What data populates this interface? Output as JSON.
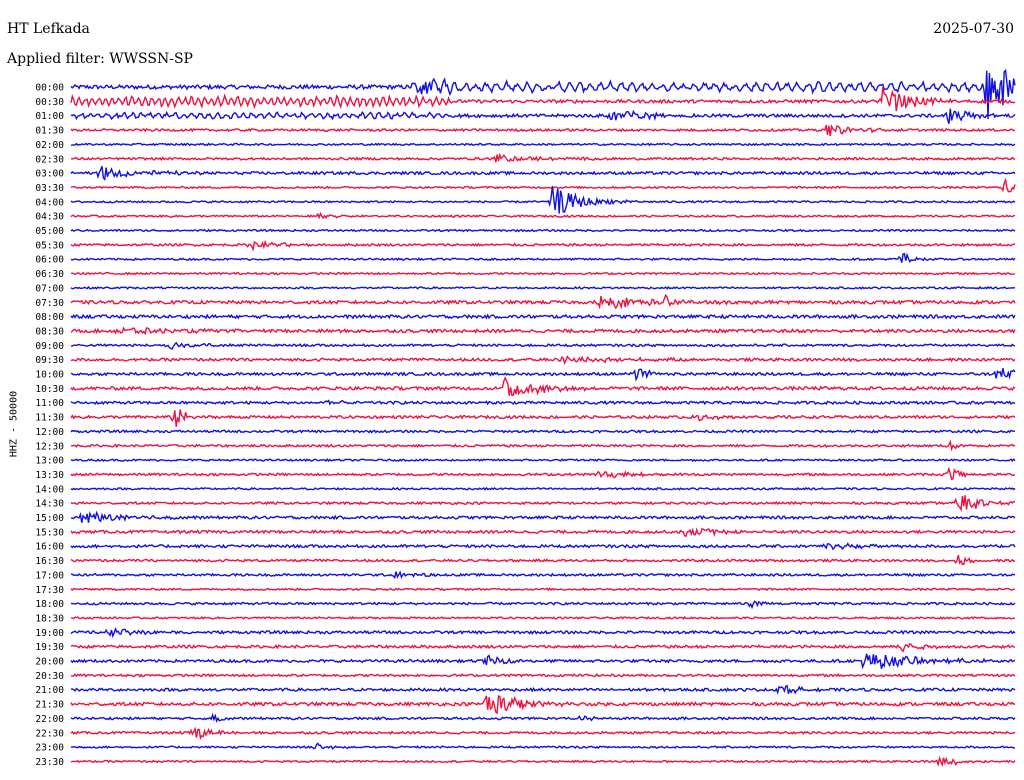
{
  "header": {
    "station": "HT Lefkada",
    "date": "2025-07-30",
    "filter_text": "Applied filter: WWSSN-SP"
  },
  "axis": {
    "ylabel": "HHZ - 50000"
  },
  "colors": {
    "trace_a": "#1010e0",
    "trace_b": "#f01040"
  },
  "chart_data": {
    "type": "line",
    "title": "HT Lefkada",
    "subtitle": "Applied filter: WWSSN-SP",
    "ylabel": "HHZ - 50000",
    "xlabel": "",
    "grid": false,
    "rows": [
      {
        "label": "00:00",
        "color": "blue",
        "base": 0.45,
        "events": [
          {
            "t": 0.37,
            "a": 2.5,
            "d": 0.02
          },
          {
            "t": 0.97,
            "a": 7.0,
            "d": 0.03
          }
        ],
        "swell": [
          {
            "from": 0.36,
            "to": 1.0,
            "a": 0.9,
            "period": 0.011
          }
        ]
      },
      {
        "label": "00:30",
        "color": "red",
        "base": 0.35,
        "events": [
          {
            "t": 0.86,
            "a": 3.0,
            "d": 0.03
          }
        ],
        "swell": [
          {
            "from": 0.0,
            "to": 0.4,
            "a": 1.0,
            "period": 0.007
          }
        ]
      },
      {
        "label": "01:00",
        "color": "blue",
        "base": 0.35,
        "events": [
          {
            "t": 0.57,
            "a": 2.0,
            "d": 0.03
          },
          {
            "t": 0.93,
            "a": 1.8,
            "d": 0.02
          }
        ],
        "swell": [
          {
            "from": 0.0,
            "to": 0.4,
            "a": 0.5,
            "period": 0.009
          }
        ]
      },
      {
        "label": "01:30",
        "color": "red",
        "base": 0.25,
        "events": [
          {
            "t": 0.8,
            "a": 1.3,
            "d": 0.03
          }
        ],
        "swell": []
      },
      {
        "label": "02:00",
        "color": "blue",
        "base": 0.2,
        "events": [],
        "swell": []
      },
      {
        "label": "02:30",
        "color": "red",
        "base": 0.25,
        "events": [
          {
            "t": 0.45,
            "a": 0.9,
            "d": 0.04
          }
        ],
        "swell": []
      },
      {
        "label": "03:00",
        "color": "blue",
        "base": 0.3,
        "events": [
          {
            "t": 0.03,
            "a": 1.6,
            "d": 0.04
          }
        ],
        "swell": []
      },
      {
        "label": "03:30",
        "color": "red",
        "base": 0.2,
        "events": [
          {
            "t": 0.99,
            "a": 2.5,
            "d": 0.01
          }
        ],
        "swell": []
      },
      {
        "label": "04:00",
        "color": "blue",
        "base": 0.2,
        "events": [
          {
            "t": 0.51,
            "a": 3.5,
            "d": 0.03
          }
        ],
        "swell": []
      },
      {
        "label": "04:30",
        "color": "red",
        "base": 0.2,
        "events": [
          {
            "t": 0.26,
            "a": 0.7,
            "d": 0.02
          }
        ],
        "swell": []
      },
      {
        "label": "05:00",
        "color": "blue",
        "base": 0.2,
        "events": [],
        "swell": []
      },
      {
        "label": "05:30",
        "color": "red",
        "base": 0.25,
        "events": [
          {
            "t": 0.19,
            "a": 0.9,
            "d": 0.03
          }
        ],
        "swell": []
      },
      {
        "label": "06:00",
        "color": "blue",
        "base": 0.2,
        "events": [
          {
            "t": 0.88,
            "a": 2.0,
            "d": 0.01
          }
        ],
        "swell": []
      },
      {
        "label": "06:30",
        "color": "red",
        "base": 0.2,
        "events": [],
        "swell": []
      },
      {
        "label": "07:00",
        "color": "blue",
        "base": 0.2,
        "events": [],
        "swell": []
      },
      {
        "label": "07:30",
        "color": "red",
        "base": 0.35,
        "events": [
          {
            "t": 0.56,
            "a": 1.4,
            "d": 0.06
          },
          {
            "t": 0.63,
            "a": 1.6,
            "d": 0.01
          }
        ],
        "swell": []
      },
      {
        "label": "08:00",
        "color": "blue",
        "base": 0.35,
        "events": [],
        "swell": []
      },
      {
        "label": "08:30",
        "color": "red",
        "base": 0.35,
        "events": [
          {
            "t": 0.05,
            "a": 0.8,
            "d": 0.05
          }
        ],
        "swell": []
      },
      {
        "label": "09:00",
        "color": "blue",
        "base": 0.25,
        "events": [
          {
            "t": 0.1,
            "a": 1.0,
            "d": 0.03
          }
        ],
        "swell": []
      },
      {
        "label": "09:30",
        "color": "red",
        "base": 0.3,
        "events": [
          {
            "t": 0.52,
            "a": 0.8,
            "d": 0.06
          }
        ],
        "swell": []
      },
      {
        "label": "10:00",
        "color": "blue",
        "base": 0.3,
        "events": [
          {
            "t": 0.6,
            "a": 1.8,
            "d": 0.01
          },
          {
            "t": 0.98,
            "a": 1.4,
            "d": 0.03
          }
        ],
        "swell": []
      },
      {
        "label": "10:30",
        "color": "red",
        "base": 0.35,
        "events": [
          {
            "t": 0.46,
            "a": 2.8,
            "d": 0.03
          }
        ],
        "swell": []
      },
      {
        "label": "11:00",
        "color": "blue",
        "base": 0.3,
        "events": [
          {
            "t": 0.27,
            "a": 0.9,
            "d": 0.01
          }
        ],
        "swell": []
      },
      {
        "label": "11:30",
        "color": "red",
        "base": 0.3,
        "events": [
          {
            "t": 0.11,
            "a": 3.0,
            "d": 0.01
          },
          {
            "t": 0.66,
            "a": 0.8,
            "d": 0.03
          }
        ],
        "swell": []
      },
      {
        "label": "12:00",
        "color": "blue",
        "base": 0.25,
        "events": [],
        "swell": []
      },
      {
        "label": "12:30",
        "color": "red",
        "base": 0.25,
        "events": [
          {
            "t": 0.93,
            "a": 1.0,
            "d": 0.01
          }
        ],
        "swell": []
      },
      {
        "label": "13:00",
        "color": "blue",
        "base": 0.2,
        "events": [],
        "swell": []
      },
      {
        "label": "13:30",
        "color": "red",
        "base": 0.25,
        "events": [
          {
            "t": 0.56,
            "a": 0.9,
            "d": 0.03
          },
          {
            "t": 0.93,
            "a": 2.0,
            "d": 0.01
          }
        ],
        "swell": []
      },
      {
        "label": "14:00",
        "color": "blue",
        "base": 0.2,
        "events": [],
        "swell": []
      },
      {
        "label": "14:30",
        "color": "red",
        "base": 0.25,
        "events": [
          {
            "t": 0.94,
            "a": 2.8,
            "d": 0.02
          }
        ],
        "swell": []
      },
      {
        "label": "15:00",
        "color": "blue",
        "base": 0.3,
        "events": [
          {
            "t": 0.01,
            "a": 1.5,
            "d": 0.04
          }
        ],
        "swell": []
      },
      {
        "label": "15:30",
        "color": "red",
        "base": 0.3,
        "events": [
          {
            "t": 0.65,
            "a": 1.2,
            "d": 0.03
          }
        ],
        "swell": []
      },
      {
        "label": "16:00",
        "color": "blue",
        "base": 0.3,
        "events": [
          {
            "t": 0.8,
            "a": 0.8,
            "d": 0.03
          }
        ],
        "swell": []
      },
      {
        "label": "16:30",
        "color": "red",
        "base": 0.25,
        "events": [
          {
            "t": 0.94,
            "a": 1.5,
            "d": 0.01
          }
        ],
        "swell": []
      },
      {
        "label": "17:00",
        "color": "blue",
        "base": 0.25,
        "events": [
          {
            "t": 0.34,
            "a": 0.9,
            "d": 0.02
          }
        ],
        "swell": []
      },
      {
        "label": "17:30",
        "color": "red",
        "base": 0.2,
        "events": [],
        "swell": []
      },
      {
        "label": "18:00",
        "color": "blue",
        "base": 0.25,
        "events": [
          {
            "t": 0.72,
            "a": 0.8,
            "d": 0.01
          }
        ],
        "swell": []
      },
      {
        "label": "18:30",
        "color": "red",
        "base": 0.2,
        "events": [],
        "swell": []
      },
      {
        "label": "19:00",
        "color": "blue",
        "base": 0.3,
        "events": [
          {
            "t": 0.04,
            "a": 1.0,
            "d": 0.03
          }
        ],
        "swell": []
      },
      {
        "label": "19:30",
        "color": "red",
        "base": 0.3,
        "events": [
          {
            "t": 0.88,
            "a": 1.3,
            "d": 0.02
          }
        ],
        "swell": []
      },
      {
        "label": "20:00",
        "color": "blue",
        "base": 0.3,
        "events": [
          {
            "t": 0.44,
            "a": 1.2,
            "d": 0.02
          },
          {
            "t": 0.84,
            "a": 2.2,
            "d": 0.05
          }
        ],
        "swell": []
      },
      {
        "label": "20:30",
        "color": "red",
        "base": 0.25,
        "events": [],
        "swell": []
      },
      {
        "label": "21:00",
        "color": "blue",
        "base": 0.3,
        "events": [
          {
            "t": 0.75,
            "a": 1.2,
            "d": 0.02
          }
        ],
        "swell": []
      },
      {
        "label": "21:30",
        "color": "red",
        "base": 0.35,
        "events": [
          {
            "t": 0.44,
            "a": 3.5,
            "d": 0.03
          }
        ],
        "swell": []
      },
      {
        "label": "22:00",
        "color": "blue",
        "base": 0.25,
        "events": [
          {
            "t": 0.15,
            "a": 0.9,
            "d": 0.01
          },
          {
            "t": 0.53,
            "a": 0.6,
            "d": 0.02
          }
        ],
        "swell": []
      },
      {
        "label": "22:30",
        "color": "red",
        "base": 0.25,
        "events": [
          {
            "t": 0.13,
            "a": 1.5,
            "d": 0.02
          }
        ],
        "swell": []
      },
      {
        "label": "23:00",
        "color": "blue",
        "base": 0.2,
        "events": [
          {
            "t": 0.26,
            "a": 0.7,
            "d": 0.02
          }
        ],
        "swell": []
      },
      {
        "label": "23:30",
        "color": "red",
        "base": 0.2,
        "events": [
          {
            "t": 0.92,
            "a": 1.2,
            "d": 0.02
          }
        ],
        "swell": []
      }
    ]
  }
}
